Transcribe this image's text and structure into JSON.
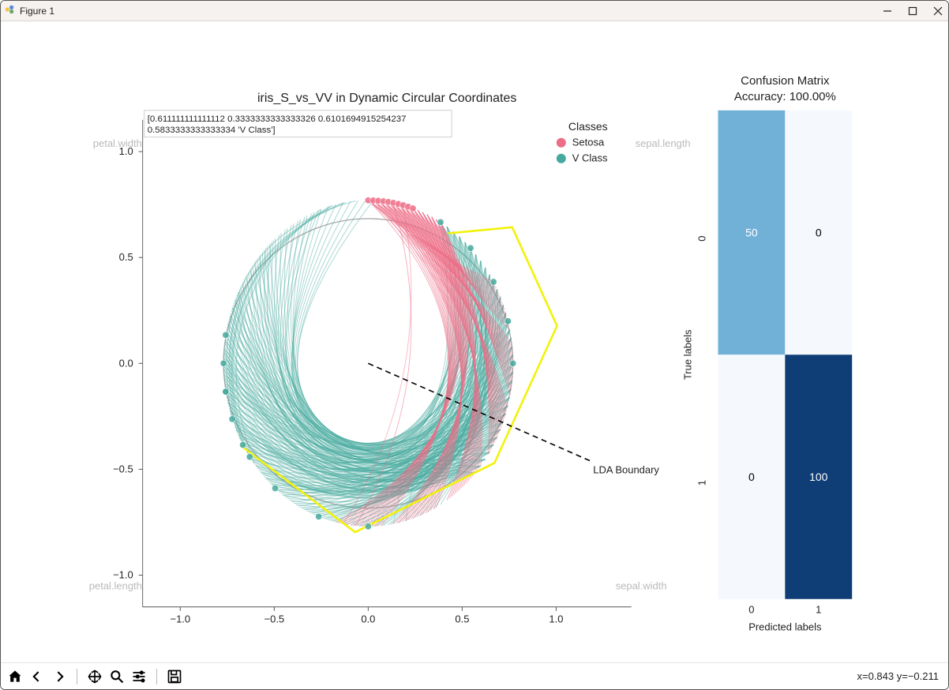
{
  "window": {
    "title": "Figure 1"
  },
  "toolbar": {
    "coords": "x=0.843 y=−0.211"
  },
  "main_plot": {
    "type": "circular-coordinates",
    "title": "iris_S_vs_VV in Dynamic Circular Coordinates",
    "xlim": [
      -1.2,
      1.4
    ],
    "ylim": [
      -1.15,
      1.15
    ],
    "xticks": [
      -1.0,
      -0.5,
      0.0,
      0.5,
      1.0
    ],
    "yticks": [
      -1.0,
      -0.5,
      0.0,
      0.5,
      1.0
    ],
    "xtick_labels": [
      "−1.0",
      "−0.5",
      "0.0",
      "0.5",
      "1.0"
    ],
    "ytick_labels": [
      "−1.0",
      "−0.5",
      "0.0",
      "0.5",
      "1.0"
    ],
    "circle_color": "#aeaeae",
    "setosa_color": "#ed6d86",
    "vclass_color": "#46a99e",
    "highlight_color": "#f2f20a",
    "lda_line_color": "#000000",
    "lda_label": "LDA Boundary",
    "corner_labels": {
      "tl": "petal.width",
      "tr": "sepal.length",
      "bl": "petal.length",
      "br": "sepal.width"
    },
    "tooltip_lines": [
      "[0.611111111111112 0.3333333333333326 0.6101694915254237",
      " 0.5833333333333334 'V Class']"
    ],
    "legend": {
      "title": "Classes",
      "items": [
        {
          "label": "Setosa",
          "color": "#ed6d86"
        },
        {
          "label": "V Class",
          "color": "#46a99e"
        }
      ]
    },
    "setosa_start_angles": [
      90,
      88,
      86,
      84,
      82,
      80,
      78,
      76,
      74,
      72,
      70,
      68,
      66,
      64,
      62,
      60
    ],
    "setosa_end_angle_range": [
      30,
      -85
    ],
    "vclass_start_angles": [
      60,
      57,
      54,
      51,
      48,
      45,
      42,
      39,
      36,
      33,
      30,
      27,
      24,
      21,
      18,
      15,
      12,
      9,
      6,
      3,
      0,
      -3,
      -6,
      -9,
      -12,
      -15,
      -18,
      -21,
      -24,
      -27,
      -30,
      -33,
      -36,
      -39,
      -42
    ],
    "vclass_outer_radii": [
      0.85,
      1.12
    ],
    "vclass_outliers_left": [
      {
        "start_angle": 95,
        "end_angle": 200,
        "r": 1.06
      },
      {
        "start_angle": 100,
        "end_angle": 205,
        "r": 1.02
      },
      {
        "start_angle": 105,
        "end_angle": 210,
        "r": 0.98
      }
    ],
    "highlight_path_angles": [
      55,
      40,
      10,
      -35,
      -95,
      -150,
      -95,
      -35,
      10,
      40,
      55
    ],
    "highlight_path_radii": [
      0.75,
      1.0,
      1.02,
      0.82,
      0.8,
      0.78,
      0.8,
      0.82,
      1.02,
      1.0,
      0.75
    ],
    "lda_line": {
      "x1": 0.0,
      "y1": 0.0,
      "x2": 1.18,
      "y2": -0.46
    },
    "scatter_dots": {
      "setosa_angles": [
        90,
        88,
        86,
        84,
        82,
        80,
        78,
        76,
        74,
        72
      ],
      "vclass_angles": [
        60,
        45,
        30,
        15,
        0,
        -90,
        -110,
        -130,
        -150,
        -170,
        215,
        200,
        190,
        180,
        170
      ],
      "radius": 0.77
    }
  },
  "confusion_matrix": {
    "title_line1": "Confusion Matrix",
    "title_line2": "Accuracy: 100.00%",
    "xlabel": "Predicted labels",
    "ylabel": "True labels",
    "row_labels": [
      "0",
      "1"
    ],
    "col_labels": [
      "0",
      "1"
    ],
    "cells": [
      [
        {
          "value": 50,
          "bg": "#72b1d7",
          "fg": "#ffffff"
        },
        {
          "value": 0,
          "bg": "#f5f9fe",
          "fg": "#000000"
        }
      ],
      [
        {
          "value": 0,
          "bg": "#f5f9fe",
          "fg": "#000000"
        },
        {
          "value": 100,
          "bg": "#0f3d75",
          "fg": "#ffffff"
        }
      ]
    ]
  }
}
